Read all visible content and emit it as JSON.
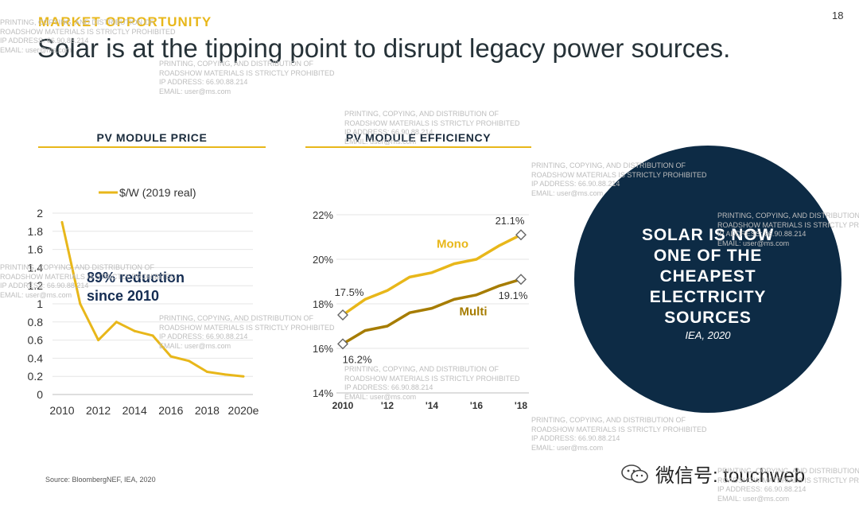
{
  "header": {
    "section_label": "MARKET OPPORTUNITY",
    "headline": "Solar is at the tipping point to disrupt legacy power sources.",
    "page_number": "18"
  },
  "colors": {
    "accent": "#e8b71a",
    "dark_navy": "#0d2b45",
    "text_dark": "#263238"
  },
  "watermark": {
    "line1": "PRINTING, COPYING, AND DISTRIBUTION OF",
    "line2": "ROADSHOW MATERIALS IS STRICTLY PROHIBITED",
    "line3": "IP ADDRESS: 66.90.88.214",
    "line4": "EMAIL: user@ms.com"
  },
  "callout": {
    "text": "SOLAR IS NOW ONE OF THE CHEAPEST ELECTRICITY SOURCES",
    "lines": [
      "SOLAR IS NOW",
      "ONE OF THE",
      "CHEAPEST",
      "ELECTRICITY",
      "SOURCES"
    ],
    "source": "IEA, 2020"
  },
  "footer": {
    "source": "Source: BloombergNEF, IEA, 2020",
    "wechat": "微信号: touchweb"
  },
  "chart_data": [
    {
      "type": "line",
      "title": "PV MODULE PRICE",
      "x": [
        2010,
        2011,
        2012,
        2013,
        2014,
        2015,
        2016,
        2017,
        2018,
        2019,
        2020
      ],
      "x_tick_labels": [
        "2010",
        "2012",
        "2014",
        "2016",
        "2018",
        "2020e"
      ],
      "series": [
        {
          "name": "$/W (2019 real)",
          "values": [
            1.9,
            1.0,
            0.6,
            0.8,
            0.7,
            0.65,
            0.42,
            0.37,
            0.25,
            0.22,
            0.2
          ]
        }
      ],
      "ylim": [
        0,
        2
      ],
      "y_ticks": [
        "0",
        "0.2",
        "0.4",
        "0.6",
        "0.8",
        "1",
        "1.2",
        "1.4",
        "1.6",
        "1.8",
        "2"
      ],
      "grid": true,
      "legend": "top-left",
      "annotation": [
        "89% reduction",
        "since 2010"
      ]
    },
    {
      "type": "line",
      "title": "PV MODULE EFFICIENCY",
      "x": [
        2010,
        2011,
        2012,
        2013,
        2014,
        2015,
        2016,
        2017,
        2018
      ],
      "x_tick_labels": [
        "2010",
        "'12",
        "'14",
        "'16",
        "'18"
      ],
      "series": [
        {
          "name": "Mono",
          "values": [
            17.5,
            18.2,
            18.6,
            19.2,
            19.4,
            19.8,
            20.0,
            20.6,
            21.1
          ]
        },
        {
          "name": "Multi",
          "values": [
            16.2,
            16.8,
            17.0,
            17.6,
            17.8,
            18.2,
            18.4,
            18.8,
            19.1
          ]
        }
      ],
      "ylim": [
        14,
        22
      ],
      "y_ticks": [
        "14%",
        "16%",
        "18%",
        "20%",
        "22%"
      ],
      "data_labels": [
        "17.5%",
        "21.1%",
        "16.2%",
        "19.1%"
      ],
      "grid": true,
      "legend": "inline labels"
    }
  ]
}
